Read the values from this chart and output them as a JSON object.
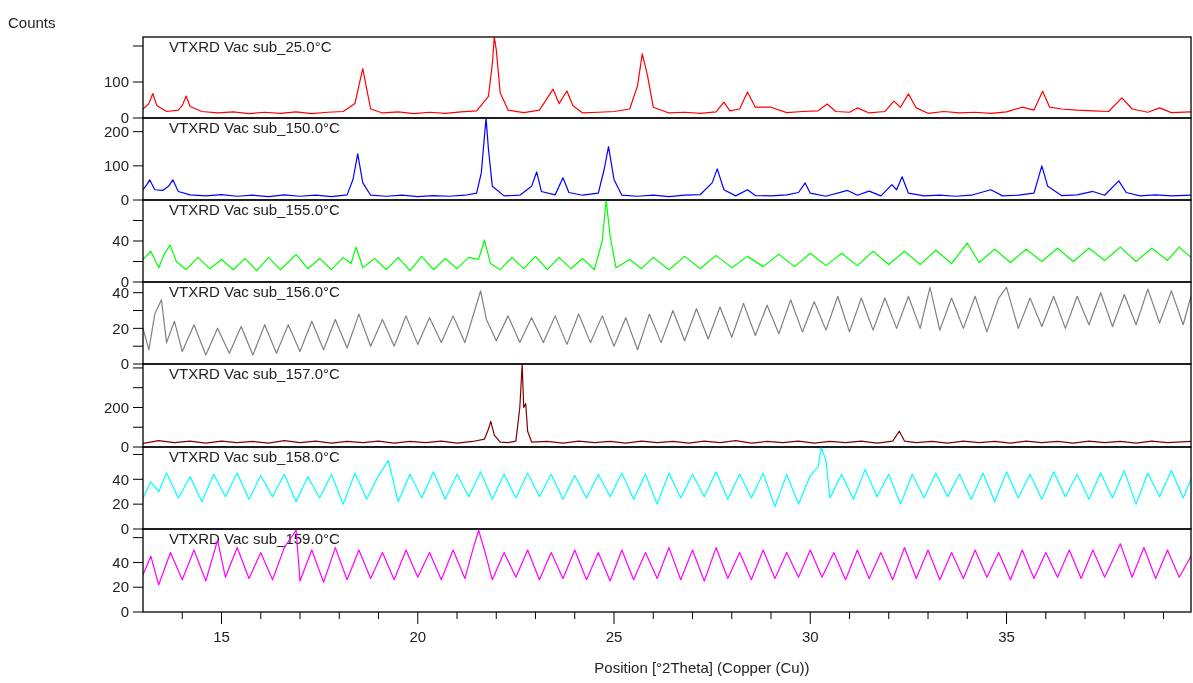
{
  "chart_data": [
    {
      "type": "line",
      "title": "VTXRD Vac sub_25.0°C",
      "ylabel": "Counts",
      "xlim": [
        13,
        39.7
      ],
      "ylim": [
        0,
        225
      ],
      "yticks": [
        0,
        100,
        {
          "value": 200,
          "label": null
        }
      ],
      "tick_labels": "y",
      "series": [
        {
          "color": "#ff0000",
          "x": [
            13.0,
            13.15,
            13.25,
            13.35,
            13.6,
            13.9,
            14.0,
            14.1,
            14.2,
            14.5,
            14.9,
            15.3,
            15.7,
            16.1,
            16.5,
            16.9,
            17.3,
            17.7,
            18.1,
            18.4,
            18.5,
            18.6,
            18.7,
            18.8,
            19.1,
            19.5,
            19.9,
            20.3,
            20.7,
            21.1,
            21.5,
            21.8,
            21.9,
            21.95,
            22.0,
            22.1,
            22.3,
            22.7,
            23.1,
            23.3,
            23.45,
            23.6,
            23.8,
            23.95,
            24.2,
            24.6,
            25.0,
            25.4,
            25.6,
            25.72,
            25.85,
            26.0,
            26.4,
            26.8,
            27.2,
            27.6,
            27.8,
            27.95,
            28.2,
            28.4,
            28.6,
            29.0,
            29.4,
            29.8,
            30.2,
            30.43,
            30.65,
            31.0,
            31.2,
            31.5,
            31.9,
            32.13,
            32.3,
            32.5,
            32.7,
            33.0,
            33.4,
            33.8,
            34.2,
            34.6,
            35.0,
            35.4,
            35.7,
            35.92,
            36.1,
            36.4,
            36.8,
            37.2,
            37.6,
            37.94,
            38.2,
            38.6,
            38.9,
            39.2,
            39.7
          ],
          "values": [
            25,
            40,
            68,
            35,
            18,
            22,
            35,
            61,
            32,
            18,
            14,
            17,
            12,
            16,
            13,
            17,
            12,
            16,
            18,
            40,
            90,
            137,
            80,
            25,
            14,
            17,
            12,
            16,
            13,
            17,
            20,
            60,
            150,
            225,
            190,
            70,
            22,
            15,
            22,
            55,
            80,
            40,
            75,
            35,
            14,
            16,
            18,
            25,
            90,
            178,
            120,
            30,
            14,
            16,
            13,
            17,
            44,
            20,
            25,
            72,
            30,
            30,
            15,
            18,
            20,
            39,
            18,
            16,
            28,
            14,
            18,
            47,
            30,
            67,
            28,
            13,
            18,
            14,
            16,
            13,
            17,
            30,
            22,
            74,
            30,
            25,
            22,
            20,
            18,
            56,
            25,
            16,
            28,
            15,
            17
          ]
        }
      ]
    },
    {
      "type": "line",
      "title": "VTXRD Vac sub_150.0°C",
      "xlim": [
        13,
        39.7
      ],
      "ylim": [
        0,
        240
      ],
      "yticks": [
        0,
        100,
        200
      ],
      "tick_labels": "y",
      "series": [
        {
          "color": "#0000ff",
          "x": [
            13.0,
            13.1,
            13.17,
            13.3,
            13.5,
            13.65,
            13.76,
            13.9,
            14.2,
            14.6,
            15.0,
            15.4,
            15.8,
            16.2,
            16.6,
            17.0,
            17.4,
            17.8,
            18.2,
            18.35,
            18.47,
            18.6,
            18.8,
            19.2,
            19.6,
            20.0,
            20.4,
            20.8,
            21.2,
            21.5,
            21.62,
            21.74,
            21.8,
            21.9,
            22.2,
            22.6,
            22.9,
            23.03,
            23.15,
            23.5,
            23.7,
            23.85,
            24.2,
            24.6,
            24.75,
            24.86,
            25.0,
            25.2,
            25.6,
            26.0,
            26.4,
            26.8,
            27.2,
            27.5,
            27.63,
            27.8,
            28.1,
            28.4,
            28.6,
            29.0,
            29.4,
            29.7,
            29.87,
            30.0,
            30.4,
            30.95,
            31.2,
            31.5,
            31.8,
            32.08,
            32.2,
            32.34,
            32.5,
            32.9,
            33.3,
            33.7,
            34.1,
            34.6,
            34.9,
            35.3,
            35.7,
            35.9,
            36.05,
            36.4,
            36.8,
            37.2,
            37.5,
            37.86,
            38.05,
            38.4,
            38.8,
            39.2,
            39.7
          ],
          "values": [
            30,
            45,
            59,
            30,
            28,
            40,
            59,
            25,
            15,
            12,
            16,
            11,
            14,
            10,
            15,
            11,
            14,
            10,
            15,
            60,
            135,
            50,
            14,
            11,
            14,
            10,
            13,
            11,
            14,
            20,
            80,
            240,
            150,
            40,
            12,
            14,
            40,
            82,
            25,
            15,
            65,
            22,
            14,
            20,
            90,
            156,
            60,
            14,
            11,
            14,
            10,
            14,
            16,
            50,
            91,
            30,
            12,
            30,
            13,
            12,
            15,
            22,
            50,
            20,
            11,
            28,
            14,
            26,
            12,
            45,
            30,
            68,
            20,
            12,
            14,
            11,
            14,
            30,
            12,
            14,
            20,
            100,
            40,
            13,
            15,
            25,
            14,
            56,
            22,
            12,
            15,
            12,
            14
          ]
        }
      ]
    },
    {
      "type": "line",
      "title": "VTXRD Vac sub_155.0°C",
      "xlim": [
        13,
        39.7
      ],
      "ylim": [
        0,
        80
      ],
      "yticks": [
        0,
        {
          "value": 20,
          "label": null
        },
        40,
        {
          "value": 60,
          "label": null
        }
      ],
      "tick_labels": "y",
      "series": [
        {
          "color": "#00ff00",
          "x": [
            13.0,
            13.2,
            13.4,
            13.55,
            13.69,
            13.85,
            14.1,
            14.4,
            14.7,
            15.0,
            15.3,
            15.6,
            15.9,
            16.2,
            16.5,
            16.9,
            17.2,
            17.5,
            17.8,
            18.1,
            18.3,
            18.43,
            18.6,
            18.9,
            19.2,
            19.5,
            19.8,
            20.1,
            20.4,
            20.7,
            21.0,
            21.3,
            21.55,
            21.7,
            21.85,
            22.1,
            22.4,
            22.7,
            23.0,
            23.3,
            23.6,
            23.9,
            24.2,
            24.5,
            24.7,
            24.8,
            24.9,
            25.05,
            25.4,
            25.7,
            26.0,
            26.4,
            26.8,
            27.2,
            27.6,
            28.0,
            28.4,
            28.8,
            29.2,
            29.6,
            30.0,
            30.4,
            30.8,
            31.2,
            31.6,
            32.0,
            32.4,
            32.8,
            33.2,
            33.6,
            34.0,
            34.3,
            34.7,
            35.1,
            35.5,
            35.9,
            36.3,
            36.7,
            37.1,
            37.5,
            37.9,
            38.3,
            38.7,
            39.1,
            39.4,
            39.7
          ],
          "values": [
            22,
            30,
            14,
            28,
            36,
            20,
            12,
            24,
            13,
            22,
            12,
            23,
            11,
            24,
            12,
            27,
            13,
            23,
            12,
            24,
            18,
            34,
            14,
            23,
            12,
            24,
            11,
            25,
            12,
            23,
            13,
            24,
            22,
            41,
            18,
            12,
            24,
            13,
            25,
            12,
            24,
            13,
            23,
            12,
            40,
            80,
            45,
            14,
            22,
            13,
            24,
            12,
            25,
            13,
            26,
            14,
            25,
            15,
            27,
            15,
            28,
            16,
            28,
            16,
            30,
            17,
            30,
            17,
            31,
            18,
            38,
            19,
            32,
            19,
            32,
            20,
            33,
            20,
            33,
            21,
            34,
            20,
            33,
            21,
            34,
            24
          ]
        }
      ]
    },
    {
      "type": "line",
      "title": "VTXRD Vac sub_156.0°C",
      "xlim": [
        13,
        39.7
      ],
      "ylim": [
        0,
        46
      ],
      "yticks": [
        0,
        {
          "value": 10,
          "label": null
        },
        20,
        {
          "value": 30,
          "label": null
        },
        40
      ],
      "tick_labels": "y",
      "series": [
        {
          "color": "#808080",
          "x": [
            13.0,
            13.15,
            13.3,
            13.47,
            13.6,
            13.8,
            14.0,
            14.3,
            14.6,
            14.9,
            15.2,
            15.5,
            15.8,
            16.1,
            16.4,
            16.7,
            17.0,
            17.3,
            17.6,
            17.9,
            18.2,
            18.5,
            18.8,
            19.1,
            19.4,
            19.7,
            20.0,
            20.3,
            20.6,
            20.9,
            21.2,
            21.45,
            21.6,
            21.75,
            22.0,
            22.3,
            22.6,
            22.9,
            23.2,
            23.5,
            23.8,
            24.1,
            24.4,
            24.7,
            25.0,
            25.3,
            25.6,
            25.9,
            26.2,
            26.5,
            26.8,
            27.1,
            27.4,
            27.7,
            28.0,
            28.3,
            28.6,
            28.9,
            29.2,
            29.5,
            29.8,
            30.1,
            30.4,
            30.7,
            31.0,
            31.3,
            31.6,
            31.9,
            32.2,
            32.5,
            32.8,
            33.05,
            33.3,
            33.6,
            33.9,
            34.2,
            34.5,
            34.8,
            35.0,
            35.3,
            35.6,
            35.9,
            36.2,
            36.5,
            36.8,
            37.1,
            37.4,
            37.7,
            38.0,
            38.3,
            38.6,
            38.9,
            39.2,
            39.5,
            39.7
          ],
          "values": [
            20,
            8,
            28,
            36,
            12,
            24,
            7,
            22,
            5,
            20,
            6,
            21,
            5,
            22,
            6,
            22,
            7,
            24,
            8,
            25,
            9,
            28,
            10,
            25,
            10,
            27,
            11,
            26,
            12,
            27,
            12,
            30,
            41,
            25,
            13,
            27,
            12,
            26,
            12,
            27,
            11,
            28,
            12,
            27,
            10,
            26,
            8,
            28,
            12,
            30,
            13,
            31,
            14,
            32,
            15,
            34,
            16,
            33,
            17,
            36,
            18,
            35,
            19,
            38,
            18,
            37,
            19,
            37,
            20,
            38,
            20,
            43,
            19,
            37,
            20,
            38,
            18,
            37,
            43,
            20,
            37,
            21,
            38,
            20,
            38,
            22,
            40,
            21,
            39,
            22,
            42,
            23,
            41,
            22,
            38
          ]
        }
      ]
    },
    {
      "type": "line",
      "title": "VTXRD Vac sub_157.0°C",
      "xlim": [
        13,
        39.7
      ],
      "ylim": [
        0,
        420
      ],
      "yticks": [
        0,
        {
          "value": 100,
          "label": null
        },
        200,
        {
          "value": 300,
          "label": null
        },
        {
          "value": 400,
          "label": null
        }
      ],
      "tick_labels": "y",
      "series": [
        {
          "color": "#800000",
          "x": [
            13.0,
            13.4,
            13.8,
            14.2,
            14.6,
            15.0,
            15.4,
            15.8,
            16.2,
            16.6,
            17.0,
            17.4,
            17.8,
            18.2,
            18.6,
            19.0,
            19.4,
            19.8,
            20.2,
            20.6,
            21.0,
            21.4,
            21.7,
            21.8,
            21.86,
            21.95,
            22.1,
            22.3,
            22.5,
            22.6,
            22.62,
            22.66,
            22.7,
            22.75,
            22.8,
            22.9,
            23.3,
            23.7,
            24.1,
            24.5,
            24.9,
            25.3,
            25.7,
            26.1,
            26.5,
            26.9,
            27.3,
            27.7,
            28.1,
            28.5,
            28.9,
            29.3,
            29.7,
            30.1,
            30.5,
            30.9,
            31.3,
            31.7,
            32.1,
            32.27,
            32.4,
            32.7,
            33.1,
            33.5,
            33.9,
            34.3,
            34.7,
            35.1,
            35.5,
            35.9,
            36.3,
            36.7,
            37.1,
            37.5,
            37.9,
            38.3,
            38.7,
            39.1,
            39.7
          ],
          "values": [
            18,
            32,
            22,
            30,
            20,
            30,
            22,
            28,
            20,
            32,
            22,
            30,
            20,
            28,
            22,
            30,
            20,
            28,
            22,
            30,
            20,
            28,
            40,
            90,
            130,
            60,
            25,
            22,
            30,
            200,
            270,
            420,
            200,
            220,
            80,
            25,
            28,
            20,
            30,
            22,
            28,
            20,
            30,
            22,
            28,
            20,
            30,
            22,
            32,
            20,
            28,
            22,
            30,
            20,
            28,
            22,
            30,
            20,
            30,
            80,
            30,
            22,
            28,
            20,
            30,
            22,
            28,
            20,
            30,
            22,
            28,
            20,
            30,
            22,
            28,
            20,
            30,
            22,
            28
          ]
        }
      ]
    },
    {
      "type": "line",
      "title": "VTXRD Vac sub_158.0°C",
      "xlim": [
        13,
        39.7
      ],
      "ylim": [
        0,
        66
      ],
      "yticks": [
        0,
        20,
        40,
        {
          "value": 60,
          "label": null
        }
      ],
      "tick_labels": "y",
      "series": [
        {
          "color": "#00ffff",
          "x": [
            13.0,
            13.2,
            13.4,
            13.6,
            13.9,
            14.2,
            14.5,
            14.8,
            15.1,
            15.4,
            15.7,
            16.0,
            16.3,
            16.6,
            16.9,
            17.2,
            17.5,
            17.8,
            18.1,
            18.4,
            18.7,
            19.0,
            19.25,
            19.5,
            19.8,
            20.1,
            20.4,
            20.7,
            21.0,
            21.3,
            21.6,
            21.9,
            22.2,
            22.5,
            22.8,
            23.1,
            23.4,
            23.7,
            24.0,
            24.3,
            24.6,
            24.9,
            25.2,
            25.5,
            25.8,
            26.1,
            26.4,
            26.7,
            27.0,
            27.3,
            27.6,
            27.9,
            28.2,
            28.5,
            28.8,
            29.1,
            29.4,
            29.7,
            30.0,
            30.2,
            30.28,
            30.4,
            30.5,
            30.8,
            31.1,
            31.4,
            31.7,
            32.0,
            32.3,
            32.6,
            32.9,
            33.2,
            33.5,
            33.8,
            34.1,
            34.4,
            34.7,
            35.0,
            35.3,
            35.6,
            35.9,
            36.2,
            36.5,
            36.8,
            37.1,
            37.4,
            37.7,
            38.0,
            38.3,
            38.6,
            38.9,
            39.2,
            39.5,
            39.7
          ],
          "values": [
            25,
            38,
            30,
            45,
            25,
            42,
            22,
            44,
            26,
            45,
            24,
            43,
            26,
            44,
            22,
            42,
            25,
            44,
            20,
            45,
            24,
            43,
            55,
            22,
            44,
            25,
            46,
            24,
            44,
            26,
            46,
            24,
            44,
            25,
            45,
            26,
            44,
            24,
            43,
            25,
            44,
            26,
            45,
            24,
            44,
            20,
            45,
            25,
            44,
            26,
            46,
            24,
            44,
            25,
            45,
            18,
            44,
            20,
            43,
            50,
            66,
            55,
            25,
            44,
            24,
            48,
            26,
            44,
            20,
            44,
            25,
            45,
            26,
            44,
            24,
            45,
            22,
            46,
            25,
            44,
            24,
            46,
            26,
            44,
            24,
            45,
            25,
            47,
            20,
            45,
            26,
            47,
            25,
            40
          ]
        }
      ]
    },
    {
      "type": "line",
      "title": "VTXRD Vac sub_159.0°C",
      "xlabel": "Position [°2Theta] (Copper (Cu))",
      "xlim": [
        13,
        39.7
      ],
      "ylim": [
        0,
        67
      ],
      "yticks": [
        0,
        20,
        40,
        {
          "value": 60,
          "label": null
        }
      ],
      "xticks": [
        {
          "value": 14,
          "label": null
        },
        15,
        {
          "value": 16,
          "label": null
        },
        {
          "value": 17,
          "label": null
        },
        {
          "value": 18,
          "label": null
        },
        {
          "value": 19,
          "label": null
        },
        20,
        {
          "value": 21,
          "label": null
        },
        {
          "value": 22,
          "label": null
        },
        {
          "value": 23,
          "label": null
        },
        {
          "value": 24,
          "label": null
        },
        25,
        {
          "value": 26,
          "label": null
        },
        {
          "value": 27,
          "label": null
        },
        {
          "value": 28,
          "label": null
        },
        {
          "value": 29,
          "label": null
        },
        30,
        {
          "value": 31,
          "label": null
        },
        {
          "value": 32,
          "label": null
        },
        {
          "value": 33,
          "label": null
        },
        {
          "value": 34,
          "label": null
        },
        35,
        {
          "value": 36,
          "label": null
        },
        {
          "value": 37,
          "label": null
        },
        {
          "value": 38,
          "label": null
        },
        {
          "value": 39,
          "label": null
        }
      ],
      "series": [
        {
          "color": "#ff00ff",
          "x": [
            13.0,
            13.2,
            13.4,
            13.7,
            14.0,
            14.3,
            14.6,
            14.9,
            15.1,
            15.4,
            15.7,
            16.0,
            16.3,
            16.6,
            16.9,
            17.0,
            17.3,
            17.6,
            17.9,
            18.2,
            18.5,
            18.8,
            19.1,
            19.4,
            19.7,
            20.0,
            20.3,
            20.6,
            20.9,
            21.2,
            21.4,
            21.55,
            21.7,
            21.9,
            22.2,
            22.5,
            22.8,
            23.1,
            23.4,
            23.7,
            24.0,
            24.3,
            24.6,
            24.9,
            25.2,
            25.5,
            25.8,
            26.1,
            26.4,
            26.7,
            27.0,
            27.3,
            27.6,
            27.9,
            28.2,
            28.5,
            28.8,
            29.1,
            29.4,
            29.7,
            30.0,
            30.3,
            30.6,
            30.9,
            31.2,
            31.5,
            31.8,
            32.1,
            32.4,
            32.7,
            33.0,
            33.3,
            33.6,
            33.9,
            34.2,
            34.5,
            34.8,
            35.1,
            35.4,
            35.7,
            36.0,
            36.3,
            36.6,
            36.9,
            37.2,
            37.5,
            37.9,
            38.2,
            38.5,
            38.8,
            39.1,
            39.4,
            39.7
          ],
          "values": [
            30,
            45,
            22,
            48,
            26,
            50,
            25,
            58,
            28,
            52,
            27,
            48,
            26,
            52,
            66,
            25,
            50,
            24,
            52,
            26,
            50,
            27,
            48,
            26,
            50,
            28,
            48,
            26,
            50,
            27,
            50,
            66,
            50,
            26,
            48,
            28,
            50,
            26,
            48,
            27,
            50,
            26,
            48,
            25,
            50,
            26,
            48,
            27,
            52,
            26,
            50,
            25,
            52,
            27,
            48,
            26,
            50,
            27,
            48,
            28,
            50,
            28,
            48,
            26,
            50,
            27,
            48,
            26,
            52,
            27,
            50,
            26,
            48,
            27,
            50,
            28,
            48,
            26,
            50,
            27,
            48,
            28,
            50,
            27,
            50,
            28,
            55,
            28,
            52,
            27,
            50,
            28,
            45
          ]
        }
      ]
    }
  ]
}
